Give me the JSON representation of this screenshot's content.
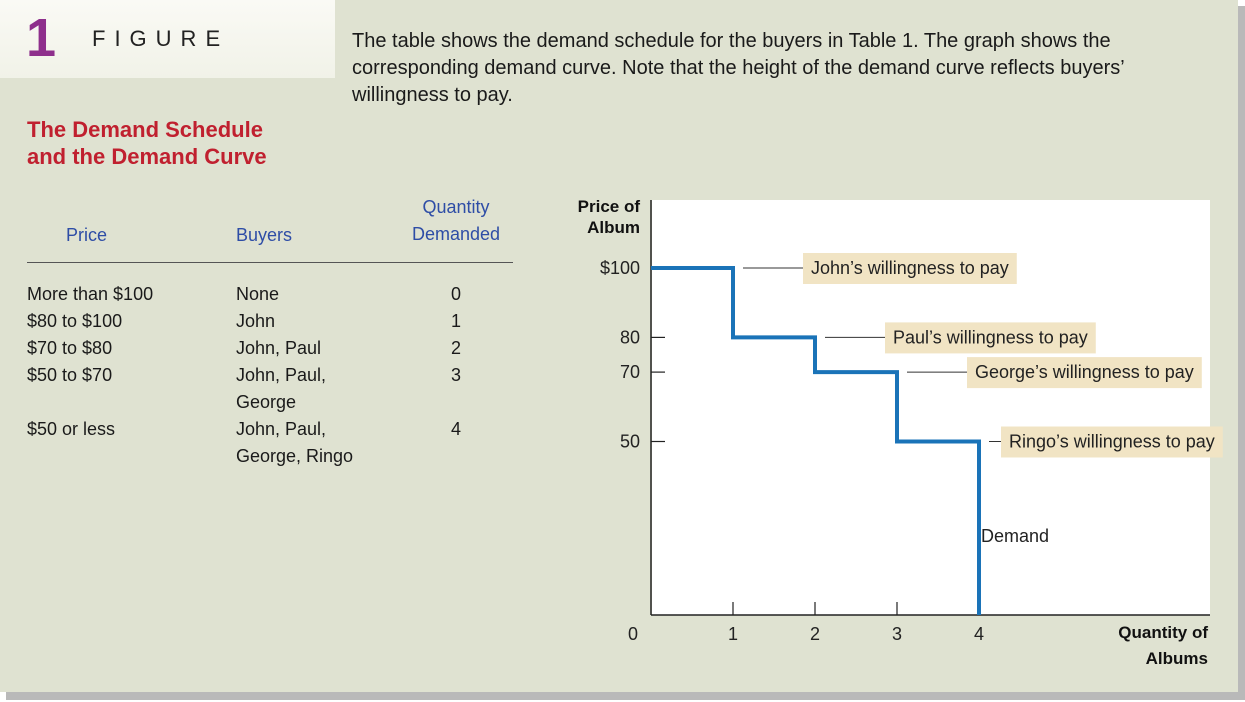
{
  "figure": {
    "number": "1",
    "word": "FIGURE"
  },
  "caption": "The table shows the demand schedule for the buyers in Table 1. The graph shows the corresponding demand curve. Note that the height of the demand curve reflects buyers’ willingness to pay.",
  "subtitle": {
    "line1": "The Demand Schedule",
    "line2": "and the Demand Curve"
  },
  "table": {
    "headers": {
      "price": "Price",
      "buyers": "Buyers",
      "quantity_line1": "Quantity",
      "quantity_line2": "Demanded"
    },
    "rows": [
      {
        "price": "More than $100",
        "buyers_line1": "None",
        "buyers_line2": "",
        "quantity": "0"
      },
      {
        "price": "$80 to $100",
        "buyers_line1": "John",
        "buyers_line2": "",
        "quantity": "1"
      },
      {
        "price": "$70 to $80",
        "buyers_line1": "John, Paul",
        "buyers_line2": "",
        "quantity": "2"
      },
      {
        "price": "$50 to $70",
        "buyers_line1": "John, Paul,",
        "buyers_line2": "George",
        "quantity": "3"
      },
      {
        "price": "$50 or less",
        "buyers_line1": "John, Paul,",
        "buyers_line2": "George, Ringo",
        "quantity": "4"
      }
    ]
  },
  "chart_data": {
    "type": "line",
    "step": true,
    "ylabel_line1": "Price of",
    "ylabel_line2": "Album",
    "xlabel_line1": "Quantity of",
    "xlabel_line2": "Albums",
    "xlim": [
      0,
      4
    ],
    "ylim": [
      0,
      100
    ],
    "x_ticks": [
      "0",
      "1",
      "2",
      "3",
      "4"
    ],
    "y_ticks": [
      {
        "value": 100,
        "label": "$100"
      },
      {
        "value": 80,
        "label": "80"
      },
      {
        "value": 70,
        "label": "70"
      },
      {
        "value": 50,
        "label": "50"
      }
    ],
    "series": [
      {
        "name": "Demand",
        "color": "#1a73b8",
        "points": [
          [
            0,
            100
          ],
          [
            1,
            100
          ],
          [
            1,
            80
          ],
          [
            2,
            80
          ],
          [
            2,
            70
          ],
          [
            3,
            70
          ],
          [
            3,
            50
          ],
          [
            4,
            50
          ],
          [
            4,
            0
          ]
        ]
      }
    ],
    "annotations": [
      {
        "text": "John’s willingness to pay",
        "y": 100
      },
      {
        "text": "Paul’s willingness to pay",
        "y": 80
      },
      {
        "text": "George’s willingness to pay",
        "y": 70
      },
      {
        "text": "Ringo’s willingness to pay",
        "y": 50
      }
    ],
    "curve_label": "Demand",
    "annotation_bg": "#f1e4c4"
  }
}
